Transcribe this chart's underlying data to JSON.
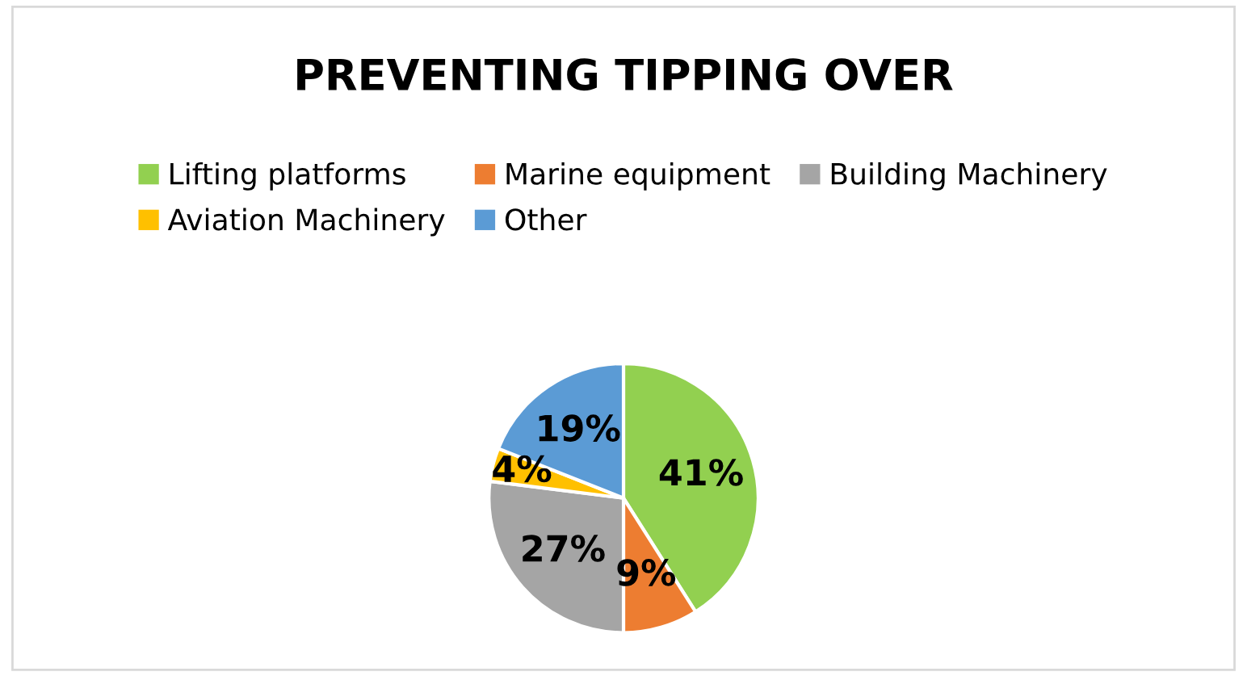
{
  "chart_data": {
    "type": "pie",
    "title": "PREVENTING TIPPING OVER",
    "categories": [
      "Lifting platforms",
      "Marine equipment",
      "Building Machinery",
      "Aviation Machinery",
      "Other"
    ],
    "values": [
      41,
      9,
      27,
      4,
      19
    ],
    "colors": [
      "#92d050",
      "#ed7d31",
      "#a5a5a5",
      "#ffc000",
      "#5b9bd5"
    ],
    "value_labels": [
      "41%",
      "9%",
      "27%",
      "4%",
      "19%"
    ],
    "legend": "top"
  }
}
